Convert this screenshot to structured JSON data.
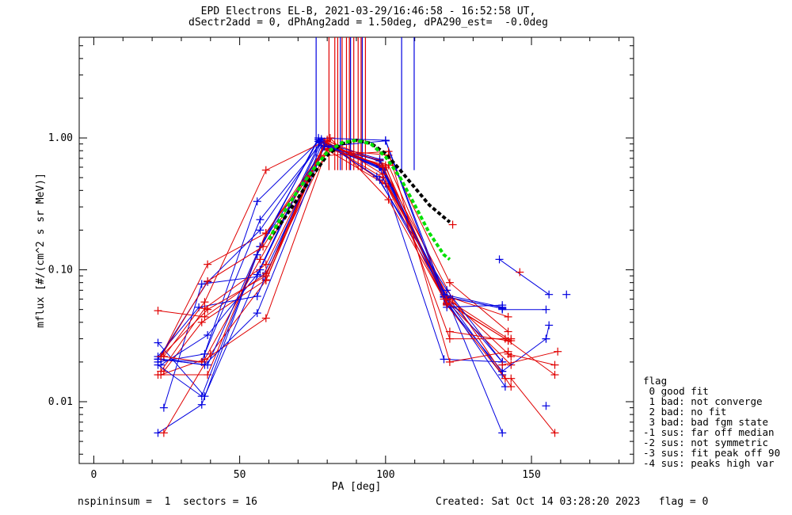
{
  "title_line1": "EPD Electrons EL-B, 2021-03-29/16:46:58 - 16:52:58 UT,",
  "title_line2": "dSectr2add = 0, dPhAng2add = 1.50deg, dPA290_est=  -0.0deg",
  "footer_left": "nspininsum =  1  sectors = 16",
  "footer_right": "Created: Sat Oct 14 03:28:20 2023   flag = 0",
  "legend": {
    "title": "flag",
    "items": [
      " 0 good fit",
      " 1 bad: not converge",
      " 2 bad: no fit",
      " 3 bad: bad fgm state",
      "-1 sus: far off median",
      "-2 sus: not symmetric",
      "-3 sus: fit peak off 90",
      "-4 sus: peaks high var"
    ]
  },
  "colors": {
    "red": "#e00000",
    "blue": "#0000e0",
    "fit_black": "#000000",
    "fit_green": "#00e000"
  },
  "chart_data": {
    "type": "line",
    "xlabel": "PA [deg]",
    "ylabel": "mflux [#/(cm^2 s sr MeV)]",
    "xlim": [
      -5,
      185
    ],
    "ylim": [
      0.0034,
      5.8
    ],
    "yscale": "log",
    "xticks": [
      0,
      50,
      100,
      150
    ],
    "xtick_labels": [
      "0",
      "50",
      "100",
      "150"
    ],
    "yticks": [
      0.01,
      0.1,
      1.0
    ],
    "ytick_labels": [
      "0.01",
      "0.10",
      "1.00"
    ],
    "peak_marker_lines": [
      {
        "color": "blue",
        "x": [
          76.2,
          84.5,
          88.0,
          92.0,
          105.5,
          109.8
        ]
      },
      {
        "color": "red",
        "x": [
          80.6,
          82.6,
          83.6,
          85.1,
          86.6,
          87.6,
          89.1,
          90.6,
          91.6,
          93.1
        ]
      }
    ],
    "series": [
      {
        "color": "blue",
        "x": [
          22,
          37,
          57,
          77,
          99,
          121,
          140
        ],
        "y": [
          0.0058,
          0.0095,
          0.15,
          0.97,
          0.59,
          0.061,
          0.0058
        ]
      },
      {
        "color": "red",
        "x": [
          23,
          38,
          57,
          80,
          101,
          122,
          142
        ],
        "y": [
          0.016,
          0.021,
          0.12,
          0.95,
          0.62,
          0.055,
          0.029
        ]
      },
      {
        "color": "blue",
        "x": [
          22,
          38,
          57,
          78,
          98,
          121,
          140
        ],
        "y": [
          0.028,
          0.011,
          0.1,
          0.93,
          0.69,
          0.055,
          0.017
        ]
      },
      {
        "color": "red",
        "x": [
          24,
          40,
          59,
          79,
          98,
          120,
          143
        ],
        "y": [
          0.0058,
          0.023,
          0.083,
          0.88,
          0.68,
          0.06,
          0.019
        ]
      },
      {
        "color": "blue",
        "x": [
          22,
          39,
          57,
          80,
          99,
          121,
          140
        ],
        "y": [
          0.021,
          0.019,
          0.15,
          0.9,
          0.58,
          0.062,
          0.051
        ]
      },
      {
        "color": "red",
        "x": [
          24,
          37,
          59,
          79,
          99,
          122,
          143
        ],
        "y": [
          0.017,
          0.04,
          0.084,
          0.92,
          0.5,
          0.06,
          0.022
        ]
      },
      {
        "color": "blue",
        "x": [
          23,
          39,
          56,
          78,
          98,
          121,
          140
        ],
        "y": [
          0.019,
          0.032,
          0.092,
          0.98,
          0.48,
          0.06,
          0.016
        ]
      },
      {
        "color": "red",
        "x": [
          22,
          39,
          59,
          80,
          100,
          121,
          141
        ],
        "y": [
          0.016,
          0.016,
          0.19,
          0.9,
          0.45,
          0.054,
          0.015
        ]
      },
      {
        "color": "blue",
        "x": [
          24,
          37,
          58,
          79,
          98,
          120,
          141
        ],
        "y": [
          0.009,
          0.078,
          0.09,
          0.87,
          0.67,
          0.062,
          0.013
        ]
      },
      {
        "color": "red",
        "x": [
          22,
          38,
          59,
          80,
          101,
          121,
          142
        ],
        "y": [
          0.049,
          0.044,
          0.094,
          0.81,
          0.43,
          0.063,
          0.044
        ]
      },
      {
        "color": "blue",
        "x": [
          22,
          36,
          56,
          78,
          98,
          120,
          140
        ],
        "y": [
          0.022,
          0.052,
          0.063,
          0.88,
          0.6,
          0.021,
          0.02
        ]
      },
      {
        "color": "red",
        "x": [
          23,
          39,
          59,
          80,
          101,
          122,
          142
        ],
        "y": [
          0.022,
          0.11,
          0.19,
          0.82,
          0.74,
          0.08,
          0.034
        ]
      },
      {
        "color": "blue",
        "x": [
          22,
          37,
          56,
          77,
          98,
          120,
          140
        ],
        "y": [
          0.021,
          0.02,
          0.33,
          0.94,
          0.62,
          0.063,
          0.051
        ]
      },
      {
        "color": "red",
        "x": [
          23,
          39,
          59,
          79,
          100,
          121,
          141
        ],
        "y": [
          0.022,
          0.05,
          0.09,
          0.91,
          0.6,
          0.056,
          0.03
        ]
      },
      {
        "color": "blue",
        "x": [
          22,
          38,
          57,
          78,
          99,
          121,
          140
        ],
        "y": [
          0.02,
          0.023,
          0.24,
          0.92,
          0.57,
          0.062,
          0.02
        ]
      },
      {
        "color": "red",
        "x": [
          24,
          38,
          59,
          79,
          99,
          123,
          143
        ],
        "y": [
          0.022,
          0.057,
          0.57,
          0.94,
          0.6,
          0.06,
          0.013
        ]
      },
      {
        "color": "blue",
        "x": [
          22,
          39,
          57,
          78,
          97,
          121,
          140
        ],
        "y": [
          0.021,
          0.081,
          0.2,
          0.95,
          0.51,
          0.07,
          0.02
        ]
      },
      {
        "color": "red",
        "x": [
          23,
          38,
          59,
          80,
          99,
          121,
          143
        ],
        "y": [
          0.017,
          0.051,
          0.11,
          0.97,
          0.53,
          0.06,
          0.029
        ]
      },
      {
        "color": "blue",
        "x": [
          22,
          37,
          56,
          77,
          100,
          120,
          140
        ],
        "y": [
          0.019,
          0.011,
          0.13,
          1.0,
          0.96,
          0.065,
          0.052
        ]
      },
      {
        "color": "red",
        "x": [
          24,
          37,
          59,
          80,
          100,
          122,
          143
        ],
        "y": [
          0.022,
          0.02,
          0.043,
          0.83,
          0.62,
          0.03,
          0.03
        ]
      },
      {
        "color": "blue",
        "x": [
          23,
          38,
          56,
          79,
          100,
          121,
          140
        ],
        "y": [
          0.021,
          0.019,
          0.047,
          0.86,
          0.95,
          0.052,
          0.054
        ]
      },
      {
        "color": "red",
        "x": [
          23,
          39,
          58,
          78,
          101,
          122,
          142
        ],
        "y": [
          0.022,
          0.082,
          0.15,
          0.73,
          0.79,
          0.02,
          0.024
        ]
      },
      {
        "color": "red",
        "x": [
          81,
          101,
          121
        ],
        "y": [
          1.0,
          0.34,
          0.055
        ]
      },
      {
        "color": "blue",
        "x": [
          139,
          156
        ],
        "y": [
          0.12,
          0.065
        ]
      },
      {
        "color": "blue",
        "x": [
          140,
          155
        ],
        "y": [
          0.05,
          0.05
        ]
      },
      {
        "color": "blue",
        "x": [
          140,
          155
        ],
        "y": [
          0.017,
          0.03
        ]
      },
      {
        "color": "red",
        "x": [
          122,
          142
        ],
        "y": [
          0.034,
          0.029
        ]
      },
      {
        "color": "red",
        "x": [
          142,
          158
        ],
        "y": [
          0.023,
          0.019
        ]
      },
      {
        "color": "red",
        "x": [
          142,
          158
        ],
        "y": [
          0.029,
          0.016
        ]
      },
      {
        "color": "red",
        "x": [
          143,
          158
        ],
        "y": [
          0.015,
          0.0058
        ]
      },
      {
        "color": "red",
        "x": [
          140,
          159
        ],
        "y": [
          0.019,
          0.024
        ]
      },
      {
        "color": "blue",
        "x": [
          155,
          156
        ],
        "y": [
          0.03,
          0.038
        ]
      }
    ],
    "isolated_points": [
      {
        "color": "blue",
        "x": 155,
        "y": 0.0093
      },
      {
        "color": "blue",
        "x": 162,
        "y": 0.065
      },
      {
        "color": "red",
        "x": 146,
        "y": 0.096
      },
      {
        "color": "red",
        "x": 123,
        "y": 0.22
      }
    ],
    "fits": [
      {
        "color": "fit_black",
        "style": "dashed",
        "x": [
          60,
          65,
          70,
          75,
          80,
          85,
          90,
          95,
          100,
          105,
          110,
          115,
          120,
          122
        ],
        "y": [
          0.17,
          0.24,
          0.35,
          0.52,
          0.74,
          0.9,
          0.96,
          0.91,
          0.76,
          0.57,
          0.42,
          0.31,
          0.25,
          0.23
        ]
      },
      {
        "color": "fit_green",
        "style": "dashed",
        "x": [
          60,
          65,
          70,
          75,
          80,
          85,
          90,
          95,
          100,
          105,
          110,
          115,
          120,
          122
        ],
        "y": [
          0.17,
          0.27,
          0.4,
          0.57,
          0.78,
          0.92,
          0.96,
          0.9,
          0.72,
          0.5,
          0.31,
          0.19,
          0.13,
          0.12
        ]
      }
    ]
  }
}
